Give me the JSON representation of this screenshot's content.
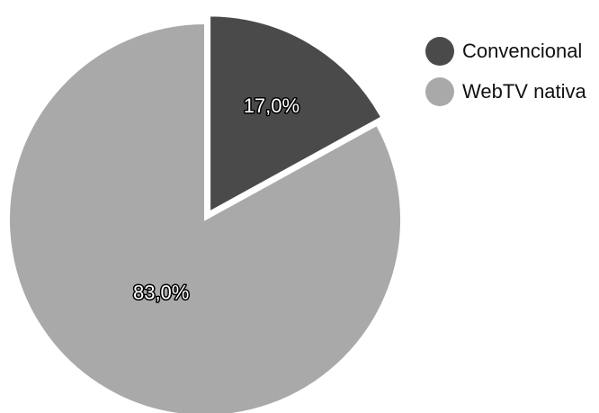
{
  "chart_data": {
    "type": "pie",
    "title": "",
    "slices": [
      {
        "name": "Convencional",
        "value": 17.0,
        "label": "17,0%",
        "color": "#4a4a4a",
        "exploded": true
      },
      {
        "name": "WebTV nativa",
        "value": 83.0,
        "label": "83,0%",
        "color": "#a9a9a9",
        "exploded": false
      }
    ],
    "legend": {
      "placement": "top-right",
      "entries": [
        {
          "label": "Convencional",
          "color": "#4a4a4a"
        },
        {
          "label": "WebTV nativa",
          "color": "#a9a9a9"
        }
      ]
    }
  }
}
